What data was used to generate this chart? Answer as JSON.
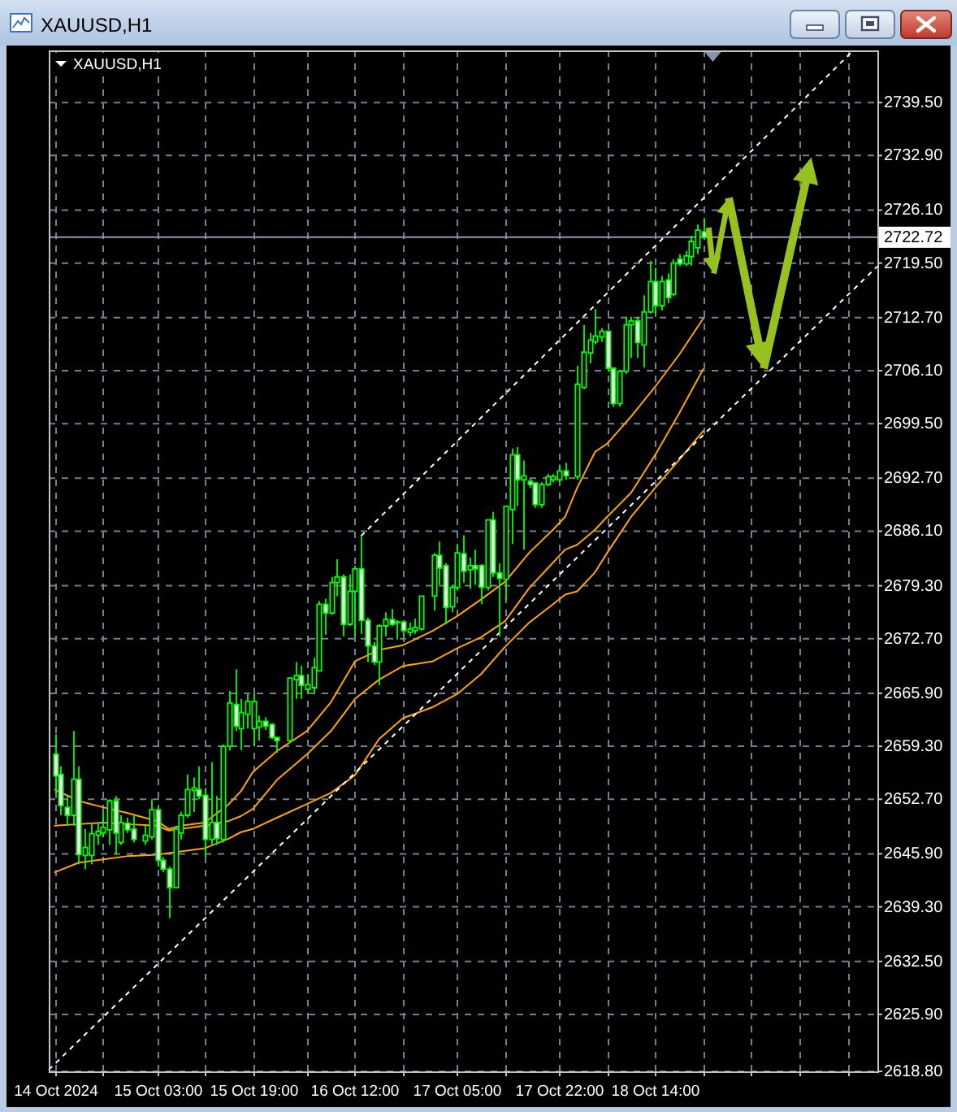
{
  "chart_data": {
    "type": "candlestick",
    "title": "XAUUSD,H1",
    "subtitle": "XAUUSD,H1",
    "x": [
      "2024-10-14T10:00",
      "2024-10-14T11:00",
      "2024-10-14T12:00",
      "2024-10-14T13:00",
      "2024-10-14T14:00",
      "2024-10-14T15:00",
      "2024-10-14T16:00",
      "2024-10-14T17:00",
      "2024-10-14T18:00",
      "2024-10-14T19:00",
      "2024-10-14T20:00",
      "2024-10-14T21:00",
      "2024-10-14T22:00",
      "2024-10-14T23:00",
      "2024-10-15T01:00",
      "2024-10-15T02:00",
      "2024-10-15T03:00",
      "2024-10-15T04:00",
      "2024-10-15T05:00",
      "2024-10-15T06:00",
      "2024-10-15T07:00",
      "2024-10-15T08:00",
      "2024-10-15T09:00",
      "2024-10-15T10:00",
      "2024-10-15T11:00",
      "2024-10-15T12:00",
      "2024-10-15T13:00",
      "2024-10-15T14:00",
      "2024-10-15T15:00",
      "2024-10-15T16:00",
      "2024-10-15T17:00",
      "2024-10-15T18:00",
      "2024-10-15T19:00",
      "2024-10-15T20:00",
      "2024-10-15T21:00",
      "2024-10-15T22:00",
      "2024-10-15T23:00",
      "2024-10-16T01:00",
      "2024-10-16T02:00",
      "2024-10-16T03:00",
      "2024-10-16T04:00",
      "2024-10-16T05:00",
      "2024-10-16T06:00",
      "2024-10-16T07:00",
      "2024-10-16T08:00",
      "2024-10-16T09:00",
      "2024-10-16T10:00",
      "2024-10-16T11:00",
      "2024-10-16T12:00",
      "2024-10-16T13:00",
      "2024-10-16T14:00",
      "2024-10-16T15:00",
      "2024-10-16T16:00",
      "2024-10-16T17:00",
      "2024-10-16T18:00",
      "2024-10-16T19:00",
      "2024-10-16T20:00",
      "2024-10-16T21:00",
      "2024-10-16T22:00",
      "2024-10-16T23:00",
      "2024-10-17T01:00",
      "2024-10-17T02:00",
      "2024-10-17T03:00",
      "2024-10-17T04:00",
      "2024-10-17T05:00",
      "2024-10-17T06:00",
      "2024-10-17T07:00",
      "2024-10-17T08:00",
      "2024-10-17T09:00",
      "2024-10-17T10:00",
      "2024-10-17T11:00",
      "2024-10-17T12:00",
      "2024-10-17T13:00",
      "2024-10-17T14:00",
      "2024-10-17T15:00",
      "2024-10-17T16:00",
      "2024-10-17T17:00",
      "2024-10-17T18:00",
      "2024-10-17T19:00",
      "2024-10-17T20:00",
      "2024-10-17T21:00",
      "2024-10-17T22:00",
      "2024-10-17T23:00",
      "2024-10-18T01:00",
      "2024-10-18T02:00",
      "2024-10-18T03:00",
      "2024-10-18T04:00",
      "2024-10-18T05:00",
      "2024-10-18T06:00",
      "2024-10-18T07:00",
      "2024-10-18T08:00",
      "2024-10-18T09:00",
      "2024-10-18T10:00",
      "2024-10-18T11:00",
      "2024-10-18T12:00",
      "2024-10-18T13:00",
      "2024-10-18T14:00",
      "2024-10-18T15:00",
      "2024-10-18T16:00",
      "2024-10-18T17:00",
      "2024-10-18T18:00",
      "2024-10-18T19:00",
      "2024-10-18T20:00",
      "2024-10-18T21:00",
      "2024-10-18T22:00"
    ],
    "ohlc": [
      [
        2658.3,
        2660.8,
        2653.4,
        2655.6
      ],
      [
        2655.8,
        2656.8,
        2650.7,
        2651.9
      ],
      [
        2651.7,
        2653.1,
        2649.4,
        2650.7
      ],
      [
        2650.7,
        2661.2,
        2649.4,
        2655.2
      ],
      [
        2655.2,
        2656.8,
        2644.6,
        2645.8
      ],
      [
        2645.7,
        2649.0,
        2644.0,
        2646.7
      ],
      [
        2645.7,
        2649.7,
        2644.6,
        2648.4
      ],
      [
        2648.2,
        2649.8,
        2647.0,
        2648.7
      ],
      [
        2648.5,
        2651.2,
        2648.0,
        2649.2
      ],
      [
        2648.9,
        2652.7,
        2647.0,
        2652.5
      ],
      [
        2652.5,
        2653.1,
        2645.8,
        2648.5
      ],
      [
        2647.3,
        2650.7,
        2647.0,
        2649.8
      ],
      [
        2649.7,
        2650.4,
        2648.5,
        2648.9
      ],
      [
        2649.0,
        2650.7,
        2647.3,
        2647.7
      ],
      [
        2647.5,
        2649.4,
        2647.0,
        2648.2
      ],
      [
        2648.0,
        2652.7,
        2647.7,
        2651.4
      ],
      [
        2651.4,
        2651.7,
        2644.3,
        2645.1
      ],
      [
        2645.1,
        2645.5,
        2643.6,
        2644.0
      ],
      [
        2644.0,
        2644.3,
        2637.9,
        2641.7
      ],
      [
        2641.7,
        2649.4,
        2641.6,
        2649.0
      ],
      [
        2648.5,
        2651.1,
        2647.7,
        2650.7
      ],
      [
        2650.7,
        2655.8,
        2650.4,
        2653.9
      ],
      [
        2653.8,
        2655.4,
        2651.1,
        2654.1
      ],
      [
        2653.9,
        2656.8,
        2652.7,
        2653.1
      ],
      [
        2653.2,
        2654.1,
        2645.5,
        2647.7
      ],
      [
        2647.7,
        2657.3,
        2647.0,
        2649.8
      ],
      [
        2649.8,
        2653.1,
        2647.0,
        2647.8
      ],
      [
        2647.7,
        2659.5,
        2647.3,
        2659.3
      ],
      [
        2659.3,
        2666.2,
        2658.8,
        2664.7
      ],
      [
        2664.5,
        2668.9,
        2661.2,
        2661.8
      ],
      [
        2661.5,
        2665.2,
        2658.8,
        2663.5
      ],
      [
        2663.3,
        2665.8,
        2661.5,
        2664.9
      ],
      [
        2661.5,
        2665.9,
        2659.3,
        2664.9
      ],
      [
        2661.7,
        2663.1,
        2660.0,
        2662.4
      ],
      [
        2662.4,
        2662.9,
        2661.3,
        2661.8
      ],
      [
        2662.0,
        2662.2,
        2660.2,
        2660.4
      ],
      [
        2660.4,
        2660.5,
        2658.5,
        2660.0
      ],
      [
        2660.0,
        2667.9,
        2659.8,
        2667.8
      ],
      [
        2667.6,
        2669.8,
        2665.2,
        2668.1
      ],
      [
        2668.1,
        2669.3,
        2665.2,
        2666.9
      ],
      [
        2666.4,
        2668.3,
        2665.9,
        2667.0
      ],
      [
        2666.6,
        2670.3,
        2665.9,
        2669.1
      ],
      [
        2668.7,
        2677.4,
        2668.6,
        2677.0
      ],
      [
        2677.0,
        2677.7,
        2673.2,
        2675.9
      ],
      [
        2675.9,
        2680.4,
        2675.7,
        2679.7
      ],
      [
        2679.7,
        2682.6,
        2678.0,
        2680.4
      ],
      [
        2680.4,
        2680.7,
        2673.0,
        2674.5
      ],
      [
        2674.5,
        2680.7,
        2674.3,
        2678.6
      ],
      [
        2678.6,
        2681.8,
        2673.0,
        2681.4
      ],
      [
        2681.4,
        2685.5,
        2673.3,
        2675.0
      ],
      [
        2675.0,
        2675.3,
        2669.8,
        2671.8
      ],
      [
        2671.8,
        2672.3,
        2669.4,
        2669.8
      ],
      [
        2669.8,
        2674.5,
        2666.9,
        2674.3
      ],
      [
        2674.3,
        2676.0,
        2673.0,
        2675.1
      ],
      [
        2675.1,
        2676.4,
        2674.3,
        2674.5
      ],
      [
        2674.7,
        2675.0,
        2672.6,
        2674.8
      ],
      [
        2674.8,
        2675.0,
        2673.0,
        2673.7
      ],
      [
        2673.5,
        2674.7,
        2673.0,
        2673.9
      ],
      [
        2673.7,
        2675.2,
        2673.3,
        2674.1
      ],
      [
        2673.9,
        2678.0,
        2673.7,
        2678.0
      ],
      [
        2678.0,
        2683.4,
        2676.2,
        2683.1
      ],
      [
        2683.1,
        2684.8,
        2679.4,
        2681.5
      ],
      [
        2681.8,
        2682.1,
        2674.5,
        2676.6
      ],
      [
        2676.7,
        2679.4,
        2676.0,
        2679.1
      ],
      [
        2679.1,
        2684.5,
        2678.7,
        2683.4
      ],
      [
        2683.3,
        2685.6,
        2679.7,
        2681.1
      ],
      [
        2681.3,
        2682.8,
        2678.9,
        2681.8
      ],
      [
        2681.8,
        2683.8,
        2679.4,
        2681.4
      ],
      [
        2681.8,
        2682.0,
        2677.0,
        2679.1
      ],
      [
        2679.1,
        2687.5,
        2678.7,
        2687.5
      ],
      [
        2687.5,
        2688.5,
        2680.4,
        2680.9
      ],
      [
        2680.9,
        2682.1,
        2673.0,
        2680.2
      ],
      [
        2680.1,
        2689.2,
        2677.5,
        2689.2
      ],
      [
        2688.8,
        2696.4,
        2684.5,
        2695.6
      ],
      [
        2695.6,
        2696.6,
        2689.2,
        2692.5
      ],
      [
        2692.5,
        2694.9,
        2683.8,
        2693.0
      ],
      [
        2692.3,
        2692.7,
        2691.5,
        2691.9
      ],
      [
        2692.1,
        2692.2,
        2689.0,
        2689.4
      ],
      [
        2689.4,
        2692.2,
        2689.0,
        2691.9
      ],
      [
        2691.9,
        2693.2,
        2691.7,
        2692.9
      ],
      [
        2692.5,
        2693.2,
        2692.2,
        2692.9
      ],
      [
        2692.5,
        2694.4,
        2692.2,
        2693.6
      ],
      [
        2693.6,
        2694.6,
        2692.5,
        2693.0
      ],
      [
        2692.9,
        2706.7,
        2692.5,
        2704.4
      ],
      [
        2704.0,
        2711.8,
        2703.8,
        2708.4
      ],
      [
        2708.3,
        2710.8,
        2707.0,
        2709.9
      ],
      [
        2709.7,
        2713.8,
        2709.4,
        2710.4
      ],
      [
        2710.3,
        2711.4,
        2709.7,
        2711.0
      ],
      [
        2711.0,
        2711.1,
        2706.0,
        2706.4
      ],
      [
        2706.4,
        2706.5,
        2701.6,
        2702.0
      ],
      [
        2702.0,
        2706.2,
        2701.6,
        2706.0
      ],
      [
        2706.0,
        2712.8,
        2705.7,
        2711.8
      ],
      [
        2711.8,
        2712.8,
        2707.7,
        2712.3
      ],
      [
        2712.3,
        2712.8,
        2707.7,
        2709.6
      ],
      [
        2709.3,
        2715.5,
        2706.5,
        2713.4
      ],
      [
        2713.4,
        2719.8,
        2713.2,
        2717.2
      ],
      [
        2717.2,
        2718.9,
        2713.1,
        2714.2
      ],
      [
        2714.2,
        2717.9,
        2713.6,
        2717.2
      ],
      [
        2717.4,
        2718.2,
        2714.5,
        2715.2
      ],
      [
        2715.6,
        2720.0,
        2715.4,
        2719.5
      ],
      [
        2720.0,
        2720.6,
        2719.1,
        2719.4
      ],
      [
        2719.4,
        2721.0,
        2719.1,
        2720.4
      ],
      [
        2720.3,
        2722.9,
        2719.2,
        2722.2
      ],
      [
        2721.4,
        2724.3,
        2720.6,
        2723.6
      ],
      [
        2723.4,
        2725.1,
        2722.4,
        2722.72
      ]
    ],
    "color": "#00ff00",
    "series": [
      {
        "type": "line",
        "color": "#ffa500",
        "x": [
          "2024-10-14T10:00",
          "2024-10-14T14:00",
          "2024-10-14T18:00",
          "2024-10-14T22:00",
          "2024-10-15T03:00",
          "2024-10-15T05:00",
          "2024-10-15T07:00",
          "2024-10-15T11:00",
          "2024-10-15T15:00",
          "2024-10-15T17:00",
          "2024-10-15T19:00",
          "2024-10-15T23:00",
          "2024-10-16T04:00",
          "2024-10-16T08:00",
          "2024-10-16T12:00",
          "2024-10-16T16:00",
          "2024-10-16T20:00",
          "2024-10-17T01:00",
          "2024-10-17T05:00",
          "2024-10-17T09:00",
          "2024-10-17T13:00",
          "2024-10-17T17:00",
          "2024-10-17T21:00",
          "2024-10-17T23:00",
          "2024-10-18T01:00",
          "2024-10-18T04:00",
          "2024-10-18T06:00",
          "2024-10-18T10:00",
          "2024-10-18T14:00",
          "2024-10-18T18:00",
          "2024-10-18T22:00"
        ],
        "values": [
          2653.9,
          2652.5,
          2651.7,
          2651.0,
          2650.0,
          2649.0,
          2649.4,
          2649.8,
          2652.1,
          2653.7,
          2656.1,
          2658.7,
          2661.2,
          2664.8,
          2669.9,
          2671.3,
          2671.9,
          2673.7,
          2675.5,
          2677.6,
          2679.8,
          2683.4,
          2686.3,
          2687.9,
          2691.5,
          2696.0,
          2697.0,
          2700.4,
          2704.1,
          2708.1,
          2712.6
        ]
      },
      {
        "type": "line",
        "color": "#ffa500",
        "x": [
          "2024-10-14T10:00",
          "2024-10-14T14:00",
          "2024-10-14T18:00",
          "2024-10-14T22:00",
          "2024-10-15T03:00",
          "2024-10-15T05:00",
          "2024-10-15T07:00",
          "2024-10-15T11:00",
          "2024-10-15T15:00",
          "2024-10-15T17:00",
          "2024-10-15T19:00",
          "2024-10-15T23:00",
          "2024-10-16T04:00",
          "2024-10-16T08:00",
          "2024-10-16T12:00",
          "2024-10-16T16:00",
          "2024-10-16T20:00",
          "2024-10-17T01:00",
          "2024-10-17T05:00",
          "2024-10-17T09:00",
          "2024-10-17T13:00",
          "2024-10-17T17:00",
          "2024-10-17T21:00",
          "2024-10-17T23:00",
          "2024-10-18T01:00",
          "2024-10-18T04:00",
          "2024-10-18T06:00",
          "2024-10-18T10:00",
          "2024-10-18T14:00",
          "2024-10-18T18:00",
          "2024-10-18T22:00"
        ],
        "values": [
          2649.4,
          2649.6,
          2649.8,
          2649.6,
          2649.4,
          2648.8,
          2649.0,
          2649.4,
          2650.0,
          2650.6,
          2651.5,
          2655.1,
          2658.3,
          2661.2,
          2665.2,
          2667.6,
          2669.3,
          2669.9,
          2671.5,
          2672.9,
          2674.9,
          2679.0,
          2682.2,
          2683.8,
          2684.4,
          2686.3,
          2687.9,
          2690.9,
          2695.6,
          2700.8,
          2706.3
        ]
      },
      {
        "type": "line",
        "color": "#ffa500",
        "x": [
          "2024-10-14T10:00",
          "2024-10-14T14:00",
          "2024-10-14T18:00",
          "2024-10-14T22:00",
          "2024-10-15T03:00",
          "2024-10-15T05:00",
          "2024-10-15T07:00",
          "2024-10-15T11:00",
          "2024-10-15T15:00",
          "2024-10-15T17:00",
          "2024-10-15T19:00",
          "2024-10-15T23:00",
          "2024-10-16T04:00",
          "2024-10-16T08:00",
          "2024-10-16T12:00",
          "2024-10-16T16:00",
          "2024-10-16T20:00",
          "2024-10-17T01:00",
          "2024-10-17T05:00",
          "2024-10-17T09:00",
          "2024-10-17T13:00",
          "2024-10-17T17:00",
          "2024-10-17T21:00",
          "2024-10-17T23:00",
          "2024-10-18T01:00",
          "2024-10-18T04:00",
          "2024-10-18T06:00",
          "2024-10-18T10:00",
          "2024-10-18T14:00",
          "2024-10-18T18:00",
          "2024-10-18T22:00"
        ],
        "values": [
          2643.6,
          2644.8,
          2645.2,
          2645.6,
          2645.8,
          2646.0,
          2646.2,
          2646.6,
          2647.8,
          2648.6,
          2649.0,
          2650.4,
          2652.1,
          2653.5,
          2655.7,
          2660.2,
          2662.8,
          2664.2,
          2665.8,
          2668.3,
          2671.7,
          2674.7,
          2677.0,
          2678.2,
          2678.6,
          2681.0,
          2683.4,
          2687.9,
          2691.5,
          2695.0,
          2698.6
        ]
      },
      {
        "type": "line",
        "color": "#ffffff",
        "line_style": "dashed",
        "x": [
          "2024-10-16T13:00",
          "2024-10-19T23:00"
        ],
        "values": [
          2685.5,
          2746.0
        ]
      },
      {
        "type": "line",
        "color": "#ffffff",
        "line_style": "dashed",
        "x": [
          "2024-10-14T09:00",
          "2024-10-20T03:00"
        ],
        "values": [
          2619.0,
          2719.1
        ]
      }
    ],
    "xlim": [
      "2024-10-14T09:00",
      "2024-10-20T03:00"
    ],
    "xticks": [
      {
        "value": "2024-10-14T10:00",
        "label": "14 Oct 2024"
      },
      {
        "value": "2024-10-14T18:00",
        "label": null
      },
      {
        "value": "2024-10-15T03:00",
        "label": "15 Oct 03:00"
      },
      {
        "value": "2024-10-15T11:00",
        "label": null
      },
      {
        "value": "2024-10-15T19:00",
        "label": "15 Oct 19:00"
      },
      {
        "value": "2024-10-16T04:00",
        "label": null
      },
      {
        "value": "2024-10-16T12:00",
        "label": "16 Oct 12:00"
      },
      {
        "value": "2024-10-16T20:00",
        "label": null
      },
      {
        "value": "2024-10-17T05:00",
        "label": "17 Oct 05:00"
      },
      {
        "value": "2024-10-17T13:00",
        "label": null
      },
      {
        "value": "2024-10-17T22:00",
        "label": "17 Oct 22:00"
      },
      {
        "value": "2024-10-18T06:00",
        "label": null
      },
      {
        "value": "2024-10-18T14:00",
        "label": "18 Oct 14:00"
      },
      {
        "value": "2024-10-18T22:00",
        "label": null
      },
      {
        "value": "2024-10-19T06:00",
        "label": null
      },
      {
        "value": "2024-10-19T14:00",
        "label": null
      },
      {
        "value": "2024-10-19T22:00",
        "label": null
      }
    ],
    "ylim": [
      2618.8,
      2746.0
    ],
    "yticks": [
      {
        "value": 2739.5,
        "label": "2739.50"
      },
      {
        "value": 2732.9,
        "label": "2732.90"
      },
      {
        "value": 2726.1,
        "label": "2726.10"
      },
      {
        "value": 2719.5,
        "label": "2719.50"
      },
      {
        "value": 2712.7,
        "label": "2712.70"
      },
      {
        "value": 2706.1,
        "label": "2706.10"
      },
      {
        "value": 2699.5,
        "label": "2699.50"
      },
      {
        "value": 2692.7,
        "label": "2692.70"
      },
      {
        "value": 2686.1,
        "label": "2686.10"
      },
      {
        "value": 2679.3,
        "label": "2679.30"
      },
      {
        "value": 2672.7,
        "label": "2672.70"
      },
      {
        "value": 2665.9,
        "label": "2665.90"
      },
      {
        "value": 2659.3,
        "label": "2659.30"
      },
      {
        "value": 2652.7,
        "label": "2652.70"
      },
      {
        "value": 2645.9,
        "label": "2645.90"
      },
      {
        "value": 2639.3,
        "label": "2639.30"
      },
      {
        "value": 2632.5,
        "label": "2632.50"
      },
      {
        "value": 2625.9,
        "label": "2625.90"
      },
      {
        "value": 2618.8,
        "label": "2618.80"
      }
    ],
    "ref_lines": [
      {
        "axis": "y",
        "value": 2722.72,
        "label": "2722.72",
        "color": "#8c9bb0"
      }
    ],
    "grid": true
  }
}
